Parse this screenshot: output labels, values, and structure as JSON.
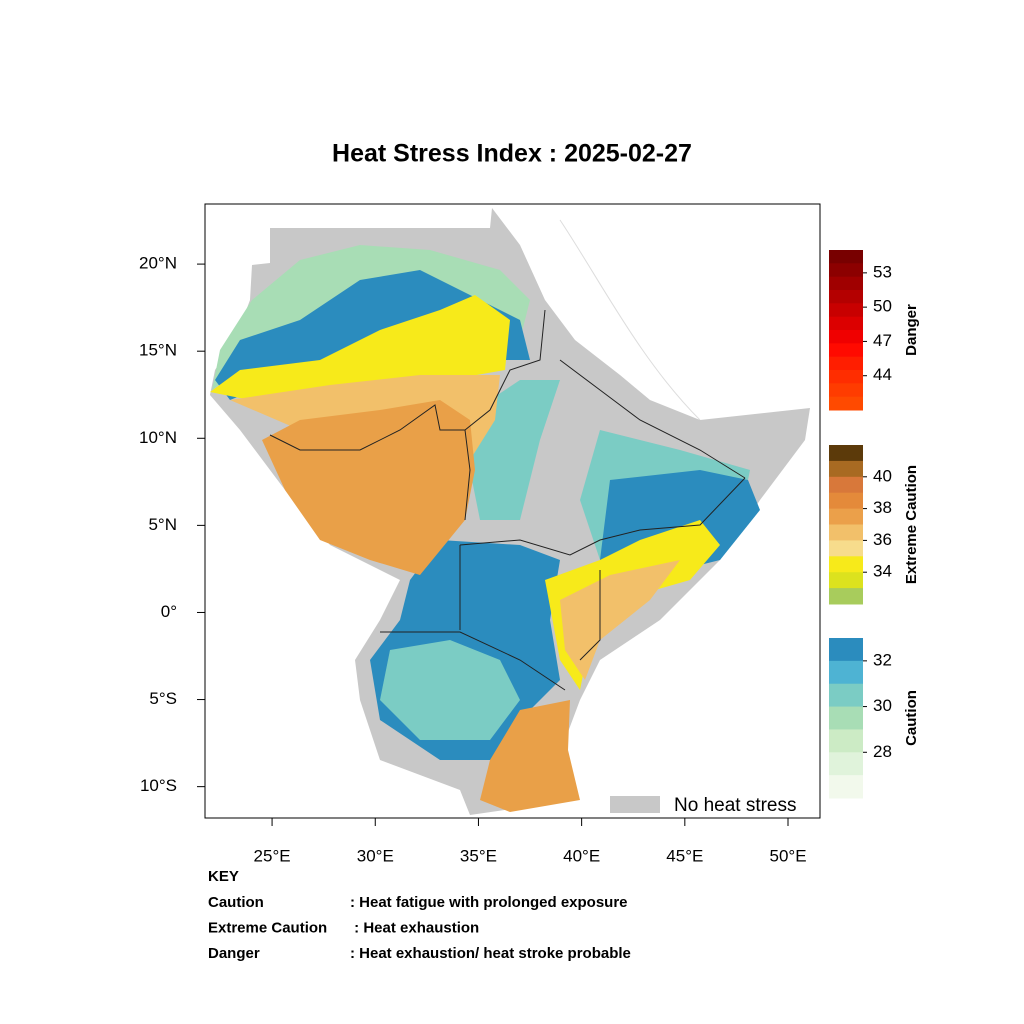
{
  "title": "Heat Stress Index : 2025-02-27",
  "map": {
    "xlim": [
      21.75,
      51.55
    ],
    "ylim": [
      -11.8,
      23.45
    ],
    "xticks": [
      {
        "value": 25,
        "label": "25°E"
      },
      {
        "value": 30,
        "label": "30°E"
      },
      {
        "value": 35,
        "label": "35°E"
      },
      {
        "value": 40,
        "label": "40°E"
      },
      {
        "value": 45,
        "label": "45°E"
      },
      {
        "value": 50,
        "label": "50°E"
      }
    ],
    "yticks": [
      {
        "value": 20,
        "label": "20°N"
      },
      {
        "value": 15,
        "label": "15°N"
      },
      {
        "value": 10,
        "label": "10°N"
      },
      {
        "value": 5,
        "label": "5°N"
      },
      {
        "value": 0,
        "label": "0°"
      },
      {
        "value": -5,
        "label": "5°S"
      },
      {
        "value": -10,
        "label": "10°S"
      }
    ],
    "legend": {
      "label": "No heat stress",
      "color": "#c8c8c8"
    }
  },
  "colorbars": [
    {
      "label": "Danger",
      "lim": [
        41,
        55
      ],
      "ticks": [
        53,
        50,
        47,
        44
      ],
      "colors": [
        "#780000",
        "#8c0000",
        "#a00000",
        "#b40000",
        "#c80000",
        "#dc0000",
        "#f00000",
        "#ff0a00",
        "#ff1e00",
        "#ff2d00",
        "#ff3c00",
        "#ff4a00"
      ]
    },
    {
      "label": "Extreme Caution",
      "lim": [
        32,
        42
      ],
      "ticks": [
        40,
        38,
        36,
        34
      ],
      "colors": [
        "#5c3a0a",
        "#a86a22",
        "#d8783a",
        "#e48a3a",
        "#eba04a",
        "#f2c06a",
        "#f7dc8c",
        "#f7ea1a",
        "#dce21e",
        "#a8cc5c"
      ]
    },
    {
      "label": "Caution",
      "lim": [
        26,
        33
      ],
      "ticks": [
        32,
        30,
        28
      ],
      "colors": [
        "#2b8cbe",
        "#4eb3d3",
        "#7bccc4",
        "#a8ddb5",
        "#ccebc5",
        "#e0f3db",
        "#f2f9ec"
      ]
    }
  ],
  "key": {
    "heading": "KEY",
    "rows": [
      [
        "Caution",
        ": Heat fatigue with prolonged exposure"
      ],
      [
        "Extreme Caution",
        " : Heat exhaustion"
      ],
      [
        "Danger",
        ": Heat exhaustion/ heat stroke probable"
      ]
    ]
  }
}
